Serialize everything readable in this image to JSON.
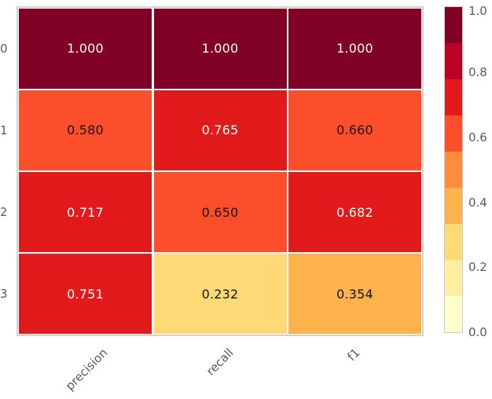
{
  "chart_data": {
    "type": "heatmap",
    "title": "",
    "xlabel": "",
    "ylabel": "",
    "rows": [
      "0",
      "1",
      "2",
      "3"
    ],
    "columns": [
      "precision",
      "recall",
      "f1"
    ],
    "values": [
      [
        1.0,
        1.0,
        1.0
      ],
      [
        0.58,
        0.765,
        0.66
      ],
      [
        0.717,
        0.65,
        0.682
      ],
      [
        0.751,
        0.232,
        0.354
      ]
    ],
    "annotation_format": "%.3f",
    "colormap": "YlOrRd",
    "colormap_discrete_levels": 9,
    "vmin": 0.0,
    "vmax": 1.0,
    "colorbar_position": "right",
    "colorbar_ticks": [
      1.0,
      0.8,
      0.6,
      0.4,
      0.2,
      0.0
    ],
    "grid": "white cell separators",
    "x_tick_rotation": 45
  },
  "heatmap": {
    "row_labels": [
      "0",
      "1",
      "2",
      "3"
    ],
    "col_labels": [
      "precision",
      "recall",
      "f1"
    ],
    "cells": [
      {
        "label": "1.000",
        "bg": "#800026",
        "fg": "#ffffff"
      },
      {
        "label": "1.000",
        "bg": "#800026",
        "fg": "#ffffff"
      },
      {
        "label": "1.000",
        "bg": "#800026",
        "fg": "#ffffff"
      },
      {
        "label": "0.580",
        "bg": "#fc4e2a",
        "fg": "#151515"
      },
      {
        "label": "0.765",
        "bg": "#e31a1c",
        "fg": "#ffffff"
      },
      {
        "label": "0.660",
        "bg": "#fc4e2a",
        "fg": "#151515"
      },
      {
        "label": "0.717",
        "bg": "#e31a1c",
        "fg": "#ffffff"
      },
      {
        "label": "0.650",
        "bg": "#fc4e2a",
        "fg": "#151515"
      },
      {
        "label": "0.682",
        "bg": "#e31a1c",
        "fg": "#ffffff"
      },
      {
        "label": "0.751",
        "bg": "#e31a1c",
        "fg": "#ffffff"
      },
      {
        "label": "0.232",
        "bg": "#fed976",
        "fg": "#151515"
      },
      {
        "label": "0.354",
        "bg": "#feb24c",
        "fg": "#151515"
      }
    ]
  },
  "colorbar": {
    "segments": [
      "#800026",
      "#bd0026",
      "#e31a1c",
      "#fc4e2a",
      "#fd8d3c",
      "#feb24c",
      "#fed976",
      "#ffeda0",
      "#ffffcc"
    ],
    "ticks": [
      {
        "label": "1.0"
      },
      {
        "label": "0.8"
      },
      {
        "label": "0.6"
      },
      {
        "label": "0.4"
      },
      {
        "label": "0.2"
      },
      {
        "label": "0.0"
      }
    ]
  },
  "styles": {
    "tick_label_color": "#595959",
    "axes_border_color": "#d2d2d2",
    "cell_gap_color": "#ffffff",
    "background": "#ffffff"
  }
}
